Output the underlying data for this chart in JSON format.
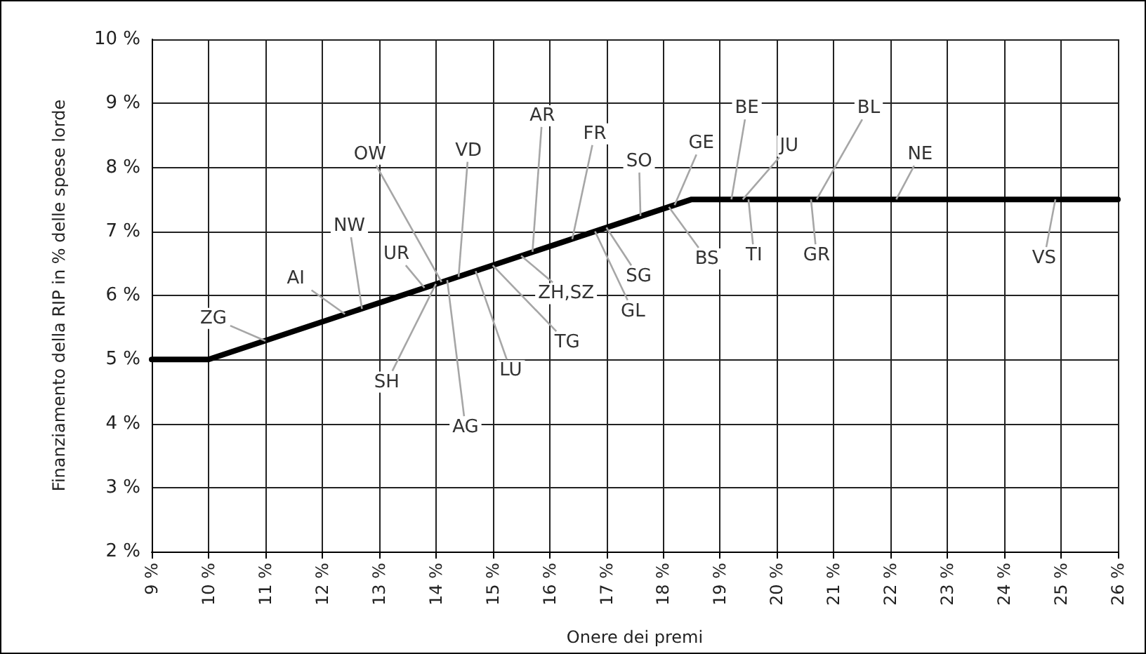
{
  "chart_data": {
    "type": "line",
    "xlabel": "Onere dei premi",
    "ylabel": "Finanziamento della RIP in % delle spese lorde",
    "x": [
      9,
      10,
      18.5,
      26
    ],
    "series": [
      {
        "color": "#000000",
        "values": [
          5,
          5,
          7.5,
          7.5
        ]
      }
    ],
    "xlim": [
      9,
      26
    ],
    "xticks": [
      {
        "value": 9,
        "label": "9 %"
      },
      {
        "value": 10,
        "label": "10 %"
      },
      {
        "value": 11,
        "label": "11 %"
      },
      {
        "value": 12,
        "label": "12 %"
      },
      {
        "value": 13,
        "label": "13 %"
      },
      {
        "value": 14,
        "label": "14 %"
      },
      {
        "value": 15,
        "label": "15 %"
      },
      {
        "value": 16,
        "label": "16 %"
      },
      {
        "value": 17,
        "label": "17 %"
      },
      {
        "value": 18,
        "label": "18 %"
      },
      {
        "value": 19,
        "label": "19 %"
      },
      {
        "value": 20,
        "label": "20 %"
      },
      {
        "value": 21,
        "label": "21 %"
      },
      {
        "value": 22,
        "label": "22 %"
      },
      {
        "value": 23,
        "label": "23 %"
      },
      {
        "value": 24,
        "label": "24 %"
      },
      {
        "value": 25,
        "label": "25 %"
      },
      {
        "value": 26,
        "label": "26 %"
      }
    ],
    "ylim": [
      2,
      10
    ],
    "yticks": [
      {
        "value": 2,
        "label": "2 %"
      },
      {
        "value": 3,
        "label": "3 %"
      },
      {
        "value": 4,
        "label": "4 %"
      },
      {
        "value": 5,
        "label": "5 %"
      },
      {
        "value": 6,
        "label": "6 %"
      },
      {
        "value": 7,
        "label": "7 %"
      },
      {
        "value": 8,
        "label": "8 %"
      },
      {
        "value": 9,
        "label": "9 %"
      },
      {
        "value": 10,
        "label": "10 %"
      }
    ],
    "grid": true,
    "marker": "none",
    "line_style": "solid",
    "annotations": [
      {
        "text": "ZG",
        "x": 11.0,
        "y": 5.29
      },
      {
        "text": "AI",
        "x": 12.4,
        "y": 5.71
      },
      {
        "text": "NW",
        "x": 12.7,
        "y": 5.79
      },
      {
        "text": "UR",
        "x": 13.8,
        "y": 6.12
      },
      {
        "text": "SH",
        "x": 14.0,
        "y": 6.18
      },
      {
        "text": "OW",
        "x": 14.1,
        "y": 6.21
      },
      {
        "text": "AG",
        "x": 14.2,
        "y": 6.24
      },
      {
        "text": "VD",
        "x": 14.4,
        "y": 6.29
      },
      {
        "text": "LU",
        "x": 14.7,
        "y": 6.38
      },
      {
        "text": "TG",
        "x": 15.0,
        "y": 6.47
      },
      {
        "text": "ZH,SZ",
        "x": 15.5,
        "y": 6.62
      },
      {
        "text": "AR",
        "x": 15.7,
        "y": 6.68
      },
      {
        "text": "FR",
        "x": 16.4,
        "y": 6.88
      },
      {
        "text": "GL",
        "x": 16.8,
        "y": 7.0
      },
      {
        "text": "SG",
        "x": 17.0,
        "y": 7.06
      },
      {
        "text": "SO",
        "x": 17.6,
        "y": 7.24
      },
      {
        "text": "BS",
        "x": 18.1,
        "y": 7.38
      },
      {
        "text": "GE",
        "x": 18.2,
        "y": 7.41
      },
      {
        "text": "BE",
        "x": 19.2,
        "y": 7.5
      },
      {
        "text": "JU",
        "x": 19.4,
        "y": 7.5
      },
      {
        "text": "TI",
        "x": 19.5,
        "y": 7.5
      },
      {
        "text": "GR",
        "x": 20.6,
        "y": 7.5
      },
      {
        "text": "BL",
        "x": 20.7,
        "y": 7.5
      },
      {
        "text": "NE",
        "x": 22.1,
        "y": 7.5
      },
      {
        "text": "VS",
        "x": 24.9,
        "y": 7.5
      }
    ]
  }
}
